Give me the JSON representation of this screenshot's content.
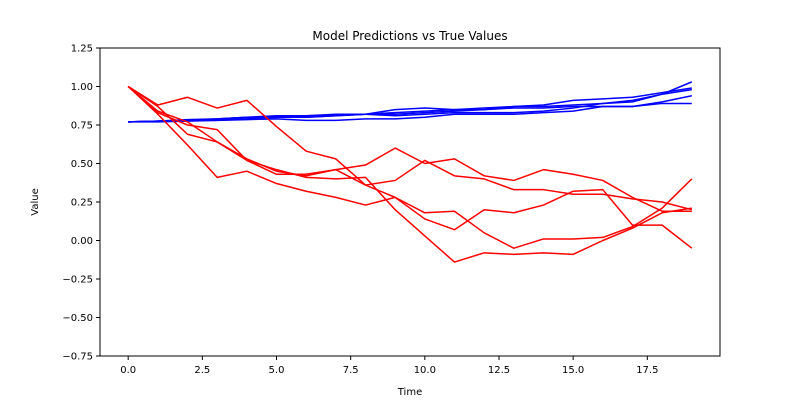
{
  "chart_data": {
    "type": "line",
    "title": "Model Predictions vs True Values",
    "xlabel": "Time",
    "ylabel": "Value",
    "xlim": [
      -0.95,
      19.95
    ],
    "ylim": [
      -0.75,
      1.25
    ],
    "xticks": [
      0.0,
      2.5,
      5.0,
      7.5,
      10.0,
      12.5,
      15.0,
      17.5
    ],
    "xtick_labels": [
      "0.0",
      "2.5",
      "5.0",
      "7.5",
      "10.0",
      "12.5",
      "15.0",
      "17.5"
    ],
    "yticks": [
      -0.75,
      -0.5,
      -0.25,
      0.0,
      0.25,
      0.5,
      0.75,
      1.0,
      1.25
    ],
    "ytick_labels": [
      "−0.75",
      "−0.50",
      "−0.25",
      "0.00",
      "0.25",
      "0.50",
      "0.75",
      "1.00",
      "1.25"
    ],
    "grid": false,
    "legend": false,
    "x": [
      0,
      1,
      2,
      3,
      4,
      5,
      6,
      7,
      8,
      9,
      10,
      11,
      12,
      13,
      14,
      15,
      16,
      17,
      18,
      19
    ],
    "series": [
      {
        "color": "#0000ff",
        "values": [
          0.77,
          0.775,
          0.78,
          0.785,
          0.79,
          0.8,
          0.8,
          0.81,
          0.82,
          0.83,
          0.84,
          0.85,
          0.86,
          0.87,
          0.87,
          0.88,
          0.89,
          0.9,
          0.95,
          0.98
        ]
      },
      {
        "color": "#0000ff",
        "values": [
          0.77,
          0.77,
          0.775,
          0.78,
          0.785,
          0.79,
          0.78,
          0.78,
          0.79,
          0.79,
          0.8,
          0.82,
          0.82,
          0.82,
          0.83,
          0.84,
          0.87,
          0.87,
          0.9,
          0.94
        ]
      },
      {
        "color": "#0000ff",
        "values": [
          0.77,
          0.775,
          0.78,
          0.79,
          0.8,
          0.81,
          0.81,
          0.82,
          0.82,
          0.81,
          0.82,
          0.83,
          0.83,
          0.83,
          0.84,
          0.86,
          0.89,
          0.91,
          0.95,
          1.03
        ]
      },
      {
        "color": "#0000ff",
        "values": [
          0.77,
          0.775,
          0.78,
          0.78,
          0.79,
          0.8,
          0.8,
          0.81,
          0.82,
          0.85,
          0.86,
          0.85,
          0.85,
          0.87,
          0.88,
          0.91,
          0.92,
          0.93,
          0.96,
          0.99
        ]
      },
      {
        "color": "#0000ff",
        "values": [
          0.77,
          0.775,
          0.785,
          0.79,
          0.8,
          0.805,
          0.81,
          0.815,
          0.82,
          0.82,
          0.83,
          0.84,
          0.85,
          0.86,
          0.86,
          0.87,
          0.87,
          0.87,
          0.89,
          0.89
        ]
      },
      {
        "color": "#ff0000",
        "values": [
          1.0,
          0.88,
          0.93,
          0.86,
          0.91,
          0.74,
          0.58,
          0.53,
          0.36,
          0.28,
          0.18,
          0.19,
          0.05,
          -0.05,
          0.01,
          0.01,
          0.02,
          0.09,
          0.21,
          0.4
        ]
      },
      {
        "color": "#ff0000",
        "values": [
          1.0,
          0.87,
          0.69,
          0.64,
          0.53,
          0.45,
          0.42,
          0.46,
          0.36,
          0.39,
          0.52,
          0.42,
          0.4,
          0.33,
          0.33,
          0.3,
          0.3,
          0.27,
          0.25,
          0.2
        ]
      },
      {
        "color": "#ff0000",
        "values": [
          1.0,
          0.82,
          0.62,
          0.41,
          0.45,
          0.37,
          0.32,
          0.28,
          0.23,
          0.28,
          0.14,
          0.07,
          0.2,
          0.18,
          0.23,
          0.32,
          0.33,
          0.1,
          0.1,
          -0.05
        ]
      },
      {
        "color": "#ff0000",
        "values": [
          1.0,
          0.83,
          0.75,
          0.72,
          0.52,
          0.46,
          0.41,
          0.4,
          0.41,
          0.2,
          0.03,
          -0.14,
          -0.08,
          -0.09,
          -0.08,
          -0.09,
          0.0,
          0.08,
          0.18,
          0.21
        ]
      },
      {
        "color": "#ff0000",
        "values": [
          1.0,
          0.84,
          0.77,
          0.64,
          0.52,
          0.43,
          0.43,
          0.46,
          0.49,
          0.6,
          0.5,
          0.53,
          0.42,
          0.39,
          0.46,
          0.43,
          0.39,
          0.28,
          0.19,
          0.19
        ]
      }
    ]
  }
}
